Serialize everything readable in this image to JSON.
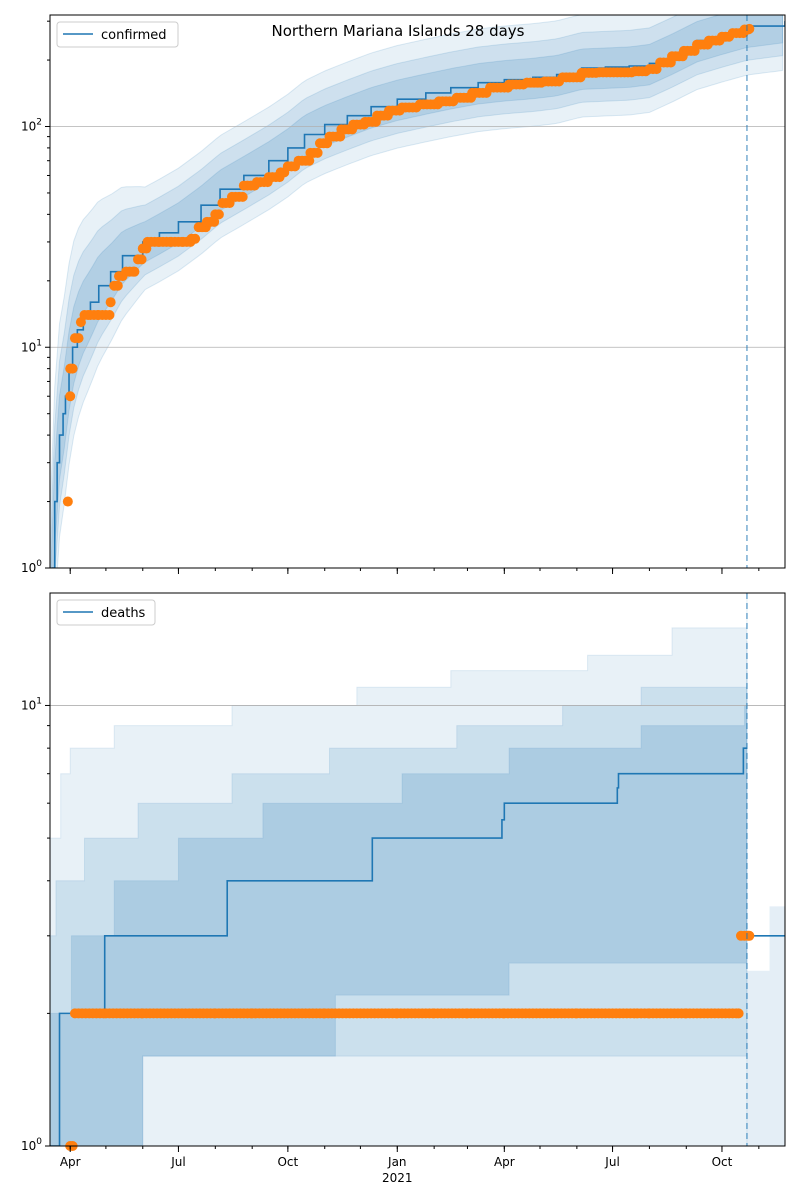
{
  "title": "Northern Mariana Islands 28 days",
  "colors": {
    "model": "#1f77b4",
    "observed": "#ff7f0e",
    "band": "#1f77b4",
    "grid": "#b0b0b0"
  },
  "chart_data": [
    {
      "type": "line",
      "name": "confirmed-panel",
      "yscale": "log",
      "ylim": [
        1,
        320
      ],
      "xlim": [
        "2020-03-15",
        "2021-11-23"
      ],
      "forecast_start": "2021-10-22",
      "yticks": [
        {
          "value": 1,
          "label": "10^0"
        },
        {
          "value": 10,
          "label": "10^1"
        },
        {
          "value": 100,
          "label": "10^2"
        }
      ],
      "grid": "major-y",
      "legend": {
        "position": "top-left",
        "entries": [
          "confirmed"
        ]
      },
      "series": [
        {
          "name": "confirmed",
          "style": "line",
          "points": [
            [
              "2020-03-15",
              0.5
            ],
            [
              "2020-03-17",
              1
            ],
            [
              "2020-03-19",
              2
            ],
            [
              "2020-03-21",
              3
            ],
            [
              "2020-03-23",
              4
            ],
            [
              "2020-03-26",
              5
            ],
            [
              "2020-03-28",
              6
            ],
            [
              "2020-03-31",
              8
            ],
            [
              "2020-04-03",
              10
            ],
            [
              "2020-04-07",
              12
            ],
            [
              "2020-04-12",
              14
            ],
            [
              "2020-04-18",
              16
            ],
            [
              "2020-04-25",
              19
            ],
            [
              "2020-05-05",
              22
            ],
            [
              "2020-05-15",
              26
            ],
            [
              "2020-06-01",
              30
            ],
            [
              "2020-06-15",
              33
            ],
            [
              "2020-07-01",
              37
            ],
            [
              "2020-07-20",
              44
            ],
            [
              "2020-08-05",
              52
            ],
            [
              "2020-08-25",
              60
            ],
            [
              "2020-09-15",
              70
            ],
            [
              "2020-10-01",
              80
            ],
            [
              "2020-10-15",
              92
            ],
            [
              "2020-11-01",
              102
            ],
            [
              "2020-11-20",
              112
            ],
            [
              "2020-12-10",
              123
            ],
            [
              "2021-01-01",
              133
            ],
            [
              "2021-01-25",
              142
            ],
            [
              "2021-02-15",
              150
            ],
            [
              "2021-03-10",
              158
            ],
            [
              "2021-04-01",
              163
            ],
            [
              "2021-04-25",
              167
            ],
            [
              "2021-05-15",
              172
            ],
            [
              "2021-06-05",
              184
            ],
            [
              "2021-06-25",
              186
            ],
            [
              "2021-07-15",
              188
            ],
            [
              "2021-08-01",
              193
            ],
            [
              "2021-08-20",
              215
            ],
            [
              "2021-09-10",
              245
            ],
            [
              "2021-10-01",
              265
            ],
            [
              "2021-10-22",
              285
            ],
            [
              "2021-11-23",
              300
            ]
          ]
        },
        {
          "name": "observed-confirmed",
          "style": "markers",
          "points": [
            [
              "2020-03-30",
              2
            ],
            [
              "2020-04-01",
              6
            ],
            [
              "2020-04-01",
              8
            ],
            [
              "2020-04-03",
              8
            ],
            [
              "2020-04-05",
              11
            ],
            [
              "2020-04-08",
              11
            ],
            [
              "2020-04-10",
              13
            ],
            [
              "2020-04-13",
              14
            ],
            [
              "2020-04-18",
              14
            ],
            [
              "2020-04-25",
              14
            ],
            [
              "2020-05-01",
              14
            ],
            [
              "2020-05-05",
              16
            ],
            [
              "2020-05-08",
              19
            ],
            [
              "2020-05-12",
              21
            ],
            [
              "2020-05-18",
              22
            ],
            [
              "2020-05-25",
              22
            ],
            [
              "2020-05-28",
              25
            ],
            [
              "2020-06-01",
              28
            ],
            [
              "2020-06-05",
              30
            ],
            [
              "2020-06-15",
              30
            ],
            [
              "2020-06-25",
              30
            ],
            [
              "2020-07-05",
              30
            ],
            [
              "2020-07-12",
              31
            ],
            [
              "2020-07-18",
              35
            ],
            [
              "2020-07-25",
              37
            ],
            [
              "2020-08-01",
              40
            ],
            [
              "2020-08-07",
              45
            ],
            [
              "2020-08-15",
              48
            ],
            [
              "2020-08-25",
              54
            ],
            [
              "2020-09-05",
              56
            ],
            [
              "2020-09-15",
              59
            ],
            [
              "2020-09-25",
              62
            ],
            [
              "2020-10-01",
              66
            ],
            [
              "2020-10-10",
              70
            ],
            [
              "2020-10-20",
              76
            ],
            [
              "2020-10-28",
              84
            ],
            [
              "2020-11-05",
              90
            ],
            [
              "2020-11-15",
              97
            ],
            [
              "2020-11-25",
              102
            ],
            [
              "2020-12-05",
              105
            ],
            [
              "2020-12-15",
              112
            ],
            [
              "2020-12-25",
              118
            ],
            [
              "2021-01-05",
              122
            ],
            [
              "2021-01-20",
              126
            ],
            [
              "2021-02-05",
              130
            ],
            [
              "2021-02-20",
              135
            ],
            [
              "2021-03-05",
              142
            ],
            [
              "2021-03-20",
              150
            ],
            [
              "2021-04-05",
              155
            ],
            [
              "2021-04-20",
              158
            ],
            [
              "2021-05-05",
              160
            ],
            [
              "2021-05-20",
              167
            ],
            [
              "2021-06-05",
              175
            ],
            [
              "2021-06-20",
              176
            ],
            [
              "2021-07-05",
              176
            ],
            [
              "2021-07-20",
              178
            ],
            [
              "2021-08-01",
              182
            ],
            [
              "2021-08-10",
              195
            ],
            [
              "2021-08-20",
              208
            ],
            [
              "2021-08-30",
              220
            ],
            [
              "2021-09-10",
              235
            ],
            [
              "2021-09-20",
              245
            ],
            [
              "2021-10-01",
              255
            ],
            [
              "2021-10-10",
              265
            ],
            [
              "2021-10-20",
              275
            ],
            [
              "2021-10-24",
              277
            ]
          ]
        }
      ]
    },
    {
      "type": "line",
      "name": "deaths-panel",
      "yscale": "log",
      "ylim": [
        1,
        18
      ],
      "xlim": [
        "2020-03-15",
        "2021-11-23"
      ],
      "forecast_start": "2021-10-22",
      "xticks": [
        {
          "date": "2020-04-01",
          "label": "Apr"
        },
        {
          "date": "2020-07-01",
          "label": "Jul"
        },
        {
          "date": "2020-10-01",
          "label": "Oct"
        },
        {
          "date": "2021-01-01",
          "label": "Jan"
        },
        {
          "date": "2021-04-01",
          "label": "Apr"
        },
        {
          "date": "2021-07-01",
          "label": "Jul"
        },
        {
          "date": "2021-10-01",
          "label": "Oct"
        }
      ],
      "xtick_sublabel": {
        "date": "2021-01-01",
        "label": "2021"
      },
      "yticks": [
        {
          "value": 1,
          "label": "10^0"
        },
        {
          "value": 10,
          "label": "10^1"
        }
      ],
      "grid": "major-y",
      "legend": {
        "position": "top-left",
        "entries": [
          "deaths"
        ]
      },
      "series": [
        {
          "name": "deaths",
          "style": "line",
          "points": [
            [
              "2020-03-15",
              1
            ],
            [
              "2020-03-22",
              1
            ],
            [
              "2020-03-23",
              2
            ],
            [
              "2020-04-28",
              2
            ],
            [
              "2020-04-30",
              3
            ],
            [
              "2020-08-10",
              3
            ],
            [
              "2020-08-11",
              4
            ],
            [
              "2020-12-10",
              4
            ],
            [
              "2020-12-11",
              5
            ],
            [
              "2021-03-28",
              5
            ],
            [
              "2021-03-30",
              5.5
            ],
            [
              "2021-04-01",
              6
            ],
            [
              "2021-07-03",
              6
            ],
            [
              "2021-07-05",
              6.5
            ],
            [
              "2021-07-06",
              7
            ],
            [
              "2021-10-18",
              7
            ],
            [
              "2021-10-19",
              8
            ],
            [
              "2021-10-22",
              8
            ]
          ]
        },
        {
          "name": "forecast-deaths",
          "style": "line",
          "points": [
            [
              "2021-10-22",
              3
            ],
            [
              "2021-11-23",
              3
            ]
          ]
        },
        {
          "name": "observed-deaths",
          "style": "markers",
          "points": [
            [
              "2020-04-01",
              1
            ],
            [
              "2020-04-03",
              1
            ],
            [
              "2020-04-05",
              2
            ],
            [
              "2020-05-01",
              2
            ],
            [
              "2020-06-01",
              2
            ],
            [
              "2020-07-01",
              2
            ],
            [
              "2020-08-01",
              2
            ],
            [
              "2020-09-01",
              2
            ],
            [
              "2020-10-01",
              2
            ],
            [
              "2020-11-01",
              2
            ],
            [
              "2020-12-01",
              2
            ],
            [
              "2021-01-01",
              2
            ],
            [
              "2021-02-01",
              2
            ],
            [
              "2021-03-01",
              2
            ],
            [
              "2021-04-01",
              2
            ],
            [
              "2021-05-01",
              2
            ],
            [
              "2021-06-01",
              2
            ],
            [
              "2021-07-01",
              2
            ],
            [
              "2021-08-01",
              2
            ],
            [
              "2021-09-01",
              2
            ],
            [
              "2021-10-15",
              2
            ],
            [
              "2021-10-17",
              3
            ],
            [
              "2021-10-24",
              3
            ]
          ]
        }
      ]
    }
  ]
}
